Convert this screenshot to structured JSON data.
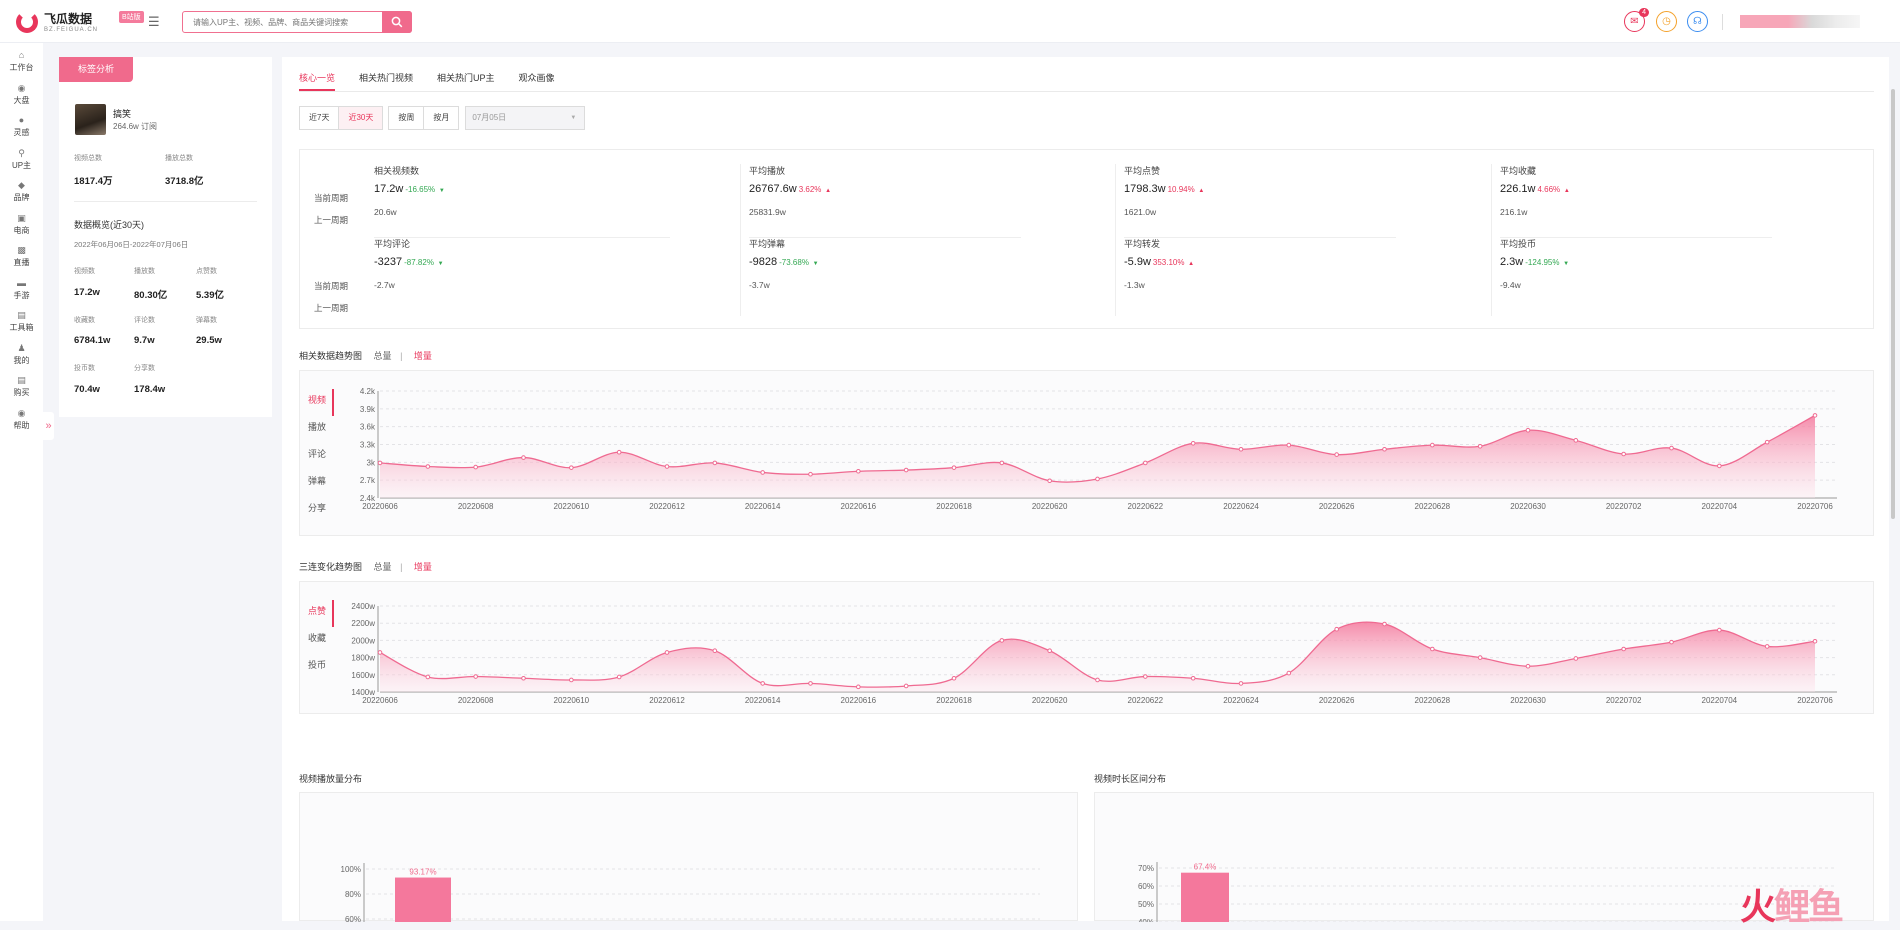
{
  "header": {
    "logo_title": "飞瓜数据",
    "logo_sub": "BZ.FEIGUA.CN",
    "logo_badge": "B站版",
    "search_placeholder": "请输入UP主、视频、品牌、商品关键词搜索",
    "mail_count": "4"
  },
  "sidebar": {
    "items": [
      {
        "label": "工作台",
        "icon": "home-icon"
      },
      {
        "label": "大盘",
        "icon": "globe-icon"
      },
      {
        "label": "灵感",
        "icon": "bulb-icon"
      },
      {
        "label": "UP主",
        "icon": "search-icon"
      },
      {
        "label": "品牌",
        "icon": "diamond-icon"
      },
      {
        "label": "电商",
        "icon": "cart-icon"
      },
      {
        "label": "直播",
        "icon": "tv-icon"
      },
      {
        "label": "手游",
        "icon": "gamepad-icon"
      },
      {
        "label": "工具箱",
        "icon": "toolbox-icon"
      },
      {
        "label": "我的",
        "icon": "user-icon"
      },
      {
        "label": "购买",
        "icon": "card-icon"
      },
      {
        "label": "帮助",
        "icon": "help-icon"
      }
    ]
  },
  "profile": {
    "tag": "标签分析",
    "name": "搞笑",
    "subs": "264.6w 订阅",
    "totals": [
      {
        "label": "视频总数",
        "value": "1817.4万"
      },
      {
        "label": "播放总数",
        "value": "3718.8亿"
      }
    ],
    "overview_title": "数据概览(近30天)",
    "overview_range": "2022年06月06日-2022年07月06日",
    "overview": [
      {
        "label": "视频数",
        "value": "17.2w"
      },
      {
        "label": "播放数",
        "value": "80.30亿"
      },
      {
        "label": "点赞数",
        "value": "5.39亿"
      },
      {
        "label": "收藏数",
        "value": "6784.1w"
      },
      {
        "label": "评论数",
        "value": "9.7w"
      },
      {
        "label": "弹幕数",
        "value": "29.5w"
      },
      {
        "label": "投币数",
        "value": "70.4w"
      },
      {
        "label": "分享数",
        "value": "178.4w"
      }
    ]
  },
  "tabs": [
    "核心一览",
    "相关热门视频",
    "相关热门UP主",
    "观众画像"
  ],
  "filters": {
    "range": [
      "近7天",
      "近30天"
    ],
    "period": [
      "按周",
      "按月"
    ],
    "date": "07月05日"
  },
  "metrics": {
    "current_label": "当前周期",
    "prev_label": "上一周期",
    "items": [
      {
        "title": "相关视频数",
        "cur": "17.2w",
        "pct": "-16.65%",
        "dir": "down",
        "prev": "20.6w"
      },
      {
        "title": "平均播放",
        "cur": "26767.6w",
        "pct": "3.62%",
        "dir": "up",
        "prev": "25831.9w"
      },
      {
        "title": "平均点赞",
        "cur": "1798.3w",
        "pct": "10.94%",
        "dir": "up",
        "prev": "1621.0w"
      },
      {
        "title": "平均收藏",
        "cur": "226.1w",
        "pct": "4.66%",
        "dir": "up",
        "prev": "216.1w"
      },
      {
        "title": "平均评论",
        "cur": "-3237",
        "pct": "-87.82%",
        "dir": "down",
        "prev": "-2.7w"
      },
      {
        "title": "平均弹幕",
        "cur": "-9828",
        "pct": "-73.68%",
        "dir": "down",
        "prev": "-3.7w"
      },
      {
        "title": "平均转发",
        "cur": "-5.9w",
        "pct": "353.10%",
        "dir": "up",
        "prev": "-1.3w"
      },
      {
        "title": "平均投币",
        "cur": "2.3w",
        "pct": "-124.95%",
        "dir": "down",
        "prev": "-9.4w"
      }
    ]
  },
  "trend1": {
    "title": "相关数据趋势图",
    "opt_total": "总量",
    "opt_inc": "增量",
    "metrics": [
      "视频",
      "播放",
      "评论",
      "弹幕",
      "分享"
    ]
  },
  "trend2": {
    "title": "三连变化趋势图",
    "opt_total": "总量",
    "opt_inc": "增量",
    "metrics": [
      "点赞",
      "收藏",
      "投币"
    ]
  },
  "dist1": {
    "title": "视频播放量分布"
  },
  "dist2": {
    "title": "视频时长区间分布"
  },
  "watermark": {
    "a": "火",
    "b": "鲤鱼"
  },
  "colors": {
    "accent": "#e8365b",
    "area": "#f7a6bc",
    "up": "#e8365b",
    "down": "#34a853"
  },
  "chart_data": [
    {
      "type": "area",
      "title": "相关数据趋势图",
      "x": [
        "20220606",
        "20220607",
        "20220608",
        "20220609",
        "20220610",
        "20220611",
        "20220612",
        "20220613",
        "20220614",
        "20220615",
        "20220616",
        "20220617",
        "20220618",
        "20220619",
        "20220620",
        "20220621",
        "20220622",
        "20220623",
        "20220624",
        "20220625",
        "20220626",
        "20220627",
        "20220628",
        "20220629",
        "20220630",
        "20220701",
        "20220702",
        "20220703",
        "20220704",
        "20220705",
        "20220706"
      ],
      "xticks": [
        "20220606",
        "20220608",
        "20220610",
        "20220612",
        "20220614",
        "20220616",
        "20220618",
        "20220620",
        "20220622",
        "20220624",
        "20220626",
        "20220628",
        "20220630",
        "20220702",
        "20220704",
        "20220706"
      ],
      "series": [
        {
          "name": "视频",
          "values": [
            2.99,
            2.93,
            2.92,
            3.08,
            2.91,
            3.17,
            2.93,
            2.99,
            2.83,
            2.8,
            2.85,
            2.87,
            2.91,
            2.99,
            2.69,
            2.72,
            2.99,
            3.32,
            3.22,
            3.29,
            3.13,
            3.22,
            3.29,
            3.27,
            3.54,
            3.37,
            3.14,
            3.24,
            2.94,
            3.34,
            3.79
          ]
        }
      ],
      "yticks": [
        "2.4k",
        "2.7k",
        "3k",
        "3.3k",
        "3.6k",
        "3.9k",
        "4.2k"
      ],
      "ylim": [
        2.4,
        4.2
      ]
    },
    {
      "type": "area",
      "title": "三连变化趋势图",
      "x": [
        "20220606",
        "20220607",
        "20220608",
        "20220609",
        "20220610",
        "20220611",
        "20220612",
        "20220613",
        "20220614",
        "20220615",
        "20220616",
        "20220617",
        "20220618",
        "20220619",
        "20220620",
        "20220621",
        "20220622",
        "20220623",
        "20220624",
        "20220625",
        "20220626",
        "20220627",
        "20220628",
        "20220629",
        "20220630",
        "20220701",
        "20220702",
        "20220703",
        "20220704",
        "20220705",
        "20220706"
      ],
      "xticks": [
        "20220606",
        "20220608",
        "20220610",
        "20220612",
        "20220614",
        "20220616",
        "20220618",
        "20220620",
        "20220622",
        "20220624",
        "20220626",
        "20220628",
        "20220630",
        "20220702",
        "20220704",
        "20220706"
      ],
      "series": [
        {
          "name": "点赞",
          "values": [
            1860,
            1575,
            1580,
            1560,
            1540,
            1575,
            1860,
            1880,
            1500,
            1500,
            1460,
            1470,
            1560,
            2000,
            1880,
            1540,
            1580,
            1560,
            1500,
            1620,
            2130,
            2190,
            1900,
            1800,
            1700,
            1790,
            1900,
            1980,
            2120,
            1930,
            1990
          ]
        }
      ],
      "yticks": [
        "1400w",
        "1600w",
        "1800w",
        "2000w",
        "2200w",
        "2400w"
      ],
      "ylim": [
        1400,
        2400
      ]
    },
    {
      "type": "bar",
      "title": "视频播放量分布",
      "values": [
        93.17
      ],
      "labels": [
        "93.17%"
      ],
      "yticks": [
        "60%",
        "80%",
        "100%"
      ],
      "ylim": [
        0,
        100
      ]
    },
    {
      "type": "bar",
      "title": "视频时长区间分布",
      "values": [
        67.4
      ],
      "labels": [
        "67.4%"
      ],
      "yticks": [
        "40%",
        "50%",
        "60%",
        "70%"
      ],
      "ylim": [
        0,
        70
      ]
    }
  ]
}
